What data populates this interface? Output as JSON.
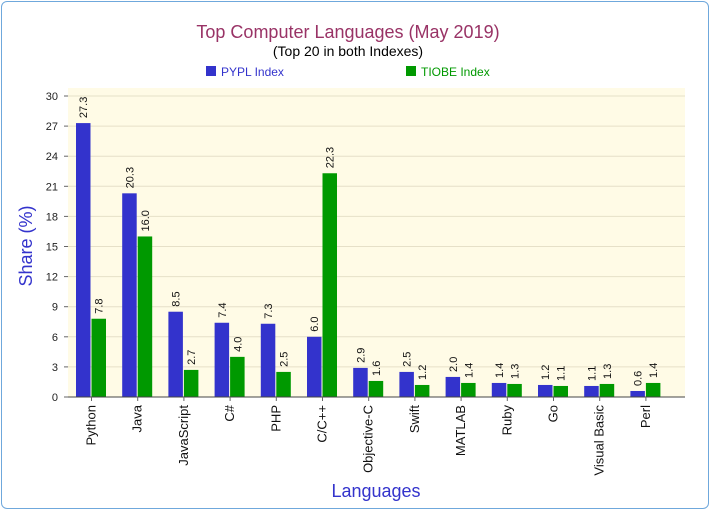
{
  "chart_data": {
    "type": "bar",
    "title": "Top Computer Languages (May 2019)",
    "subtitle": "(Top 20 in both Indexes)",
    "xlabel": "Languages",
    "ylabel": "Share (%)",
    "ylim": [
      0,
      30
    ],
    "yticks": [
      0,
      3,
      6,
      9,
      12,
      15,
      18,
      21,
      24,
      27,
      30
    ],
    "grid": true,
    "legend_position": "top",
    "categories": [
      "Python",
      "Java",
      "JavaScript",
      "C#",
      "PHP",
      "C/C++",
      "Objective-C",
      "Swift",
      "MATLAB",
      "Ruby",
      "Go",
      "Visual Basic",
      "Perl"
    ],
    "series": [
      {
        "name": "PYPL Index",
        "color": "#3333cc",
        "values": [
          27.3,
          20.3,
          8.5,
          7.4,
          7.3,
          6.0,
          2.9,
          2.5,
          2.0,
          1.4,
          1.2,
          1.1,
          0.6
        ],
        "labels": [
          "27.3",
          "20.3",
          "8.5",
          "7.4",
          "7.3",
          "6.0",
          "2.9",
          "2.5",
          "2.0",
          "1.4",
          "1.2",
          "1.1",
          "0.6"
        ]
      },
      {
        "name": "TIOBE Index",
        "color": "#009900",
        "values": [
          7.8,
          16.0,
          2.7,
          4.0,
          2.5,
          22.3,
          1.6,
          1.2,
          1.4,
          1.3,
          1.1,
          1.3,
          1.4
        ],
        "labels": [
          "7.8",
          "16.0",
          "2.7",
          "4.0",
          "2.5",
          "22.3",
          "1.6",
          "1.2",
          "1.4",
          "1.3",
          "1.1",
          "1.3",
          "1.4"
        ]
      }
    ],
    "colors": {
      "title": "#993366",
      "axis_title": "#3333cc",
      "plot_background": "#fffbe6",
      "grid": "#e6e0c8"
    }
  }
}
